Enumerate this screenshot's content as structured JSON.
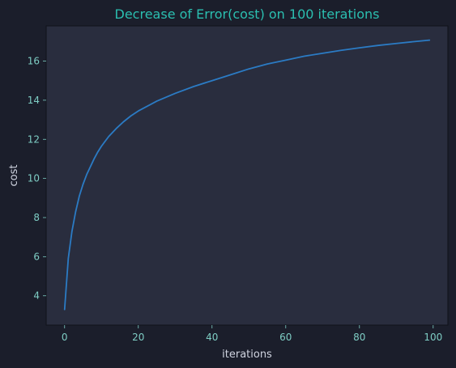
{
  "colors": {
    "figure_background": "#1b1e2b",
    "plot_background": "#292d3e",
    "title": "#2bbfb0",
    "tick_labels": "#7ecdc4",
    "axis_labels": "#d0d4e0",
    "axes_spine": "#0f1118",
    "line": "#2b7bc4"
  },
  "chart_data": {
    "type": "line",
    "title": "Decrease of Error(cost) on 100 iterations",
    "xlabel": "iterations",
    "ylabel": "cost",
    "xlim": [
      -5,
      104
    ],
    "ylim": [
      2.5,
      17.8
    ],
    "grid": false,
    "xticks": [
      0,
      20,
      40,
      60,
      80,
      100
    ],
    "xtick_labels": [
      "0",
      "20",
      "40",
      "60",
      "80",
      "100"
    ],
    "yticks": [
      4,
      6,
      8,
      10,
      12,
      14,
      16
    ],
    "ytick_labels": [
      "4",
      "6",
      "8",
      "10",
      "12",
      "14",
      "16"
    ],
    "series": [
      {
        "name": "cost",
        "x": [
          0,
          1,
          2,
          3,
          4,
          5,
          6,
          7,
          8,
          9,
          10,
          12,
          14,
          16,
          18,
          20,
          25,
          30,
          35,
          40,
          45,
          50,
          55,
          60,
          65,
          70,
          75,
          80,
          85,
          90,
          95,
          99
        ],
        "y": [
          3.3,
          5.9,
          7.3,
          8.3,
          9.1,
          9.7,
          10.2,
          10.6,
          11.0,
          11.35,
          11.65,
          12.15,
          12.55,
          12.9,
          13.2,
          13.45,
          13.95,
          14.35,
          14.7,
          15.0,
          15.3,
          15.6,
          15.85,
          16.05,
          16.25,
          16.4,
          16.55,
          16.68,
          16.8,
          16.9,
          17.0,
          17.07
        ]
      }
    ]
  }
}
